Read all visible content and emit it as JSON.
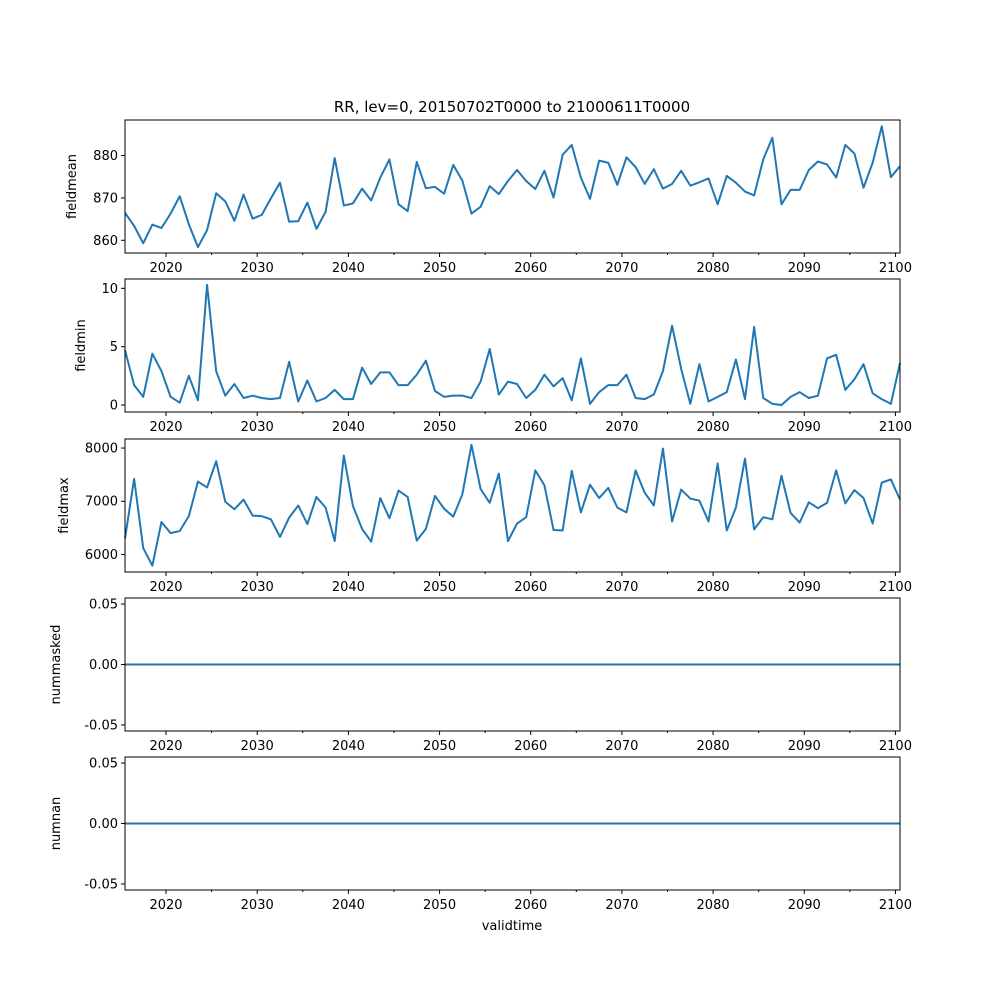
{
  "figure": {
    "title": "RR, lev=0, 20150702T0000 to 21000611T0000",
    "xlabel": "validtime"
  },
  "colors": {
    "line": "#1f77b4",
    "axes": "#000000",
    "background": "#ffffff"
  },
  "chart_data": [
    {
      "type": "line",
      "ylabel": "fieldmean",
      "x": [
        2015.5,
        2016.5,
        2017.5,
        2018.5,
        2019.5,
        2020.5,
        2021.5,
        2022.5,
        2023.5,
        2024.5,
        2025.5,
        2026.5,
        2027.5,
        2028.5,
        2029.5,
        2030.5,
        2031.5,
        2032.5,
        2033.5,
        2034.5,
        2035.5,
        2036.5,
        2037.5,
        2038.5,
        2039.5,
        2040.5,
        2041.5,
        2042.5,
        2043.5,
        2044.5,
        2045.5,
        2046.5,
        2047.5,
        2048.5,
        2049.5,
        2050.5,
        2051.5,
        2052.5,
        2053.5,
        2054.5,
        2055.5,
        2056.5,
        2057.5,
        2058.5,
        2059.5,
        2060.5,
        2061.5,
        2062.5,
        2063.5,
        2064.5,
        2065.5,
        2066.5,
        2067.5,
        2068.5,
        2069.5,
        2070.5,
        2071.5,
        2072.5,
        2073.5,
        2074.5,
        2075.5,
        2076.5,
        2077.5,
        2078.5,
        2079.5,
        2080.5,
        2081.5,
        2082.5,
        2083.5,
        2084.5,
        2085.5,
        2086.5,
        2087.5,
        2088.5,
        2089.5,
        2090.5,
        2091.5,
        2092.5,
        2093.5,
        2094.5,
        2095.5,
        2096.5,
        2097.5,
        2098.5,
        2099.5,
        2100.5
      ],
      "y": [
        866.5,
        863.4,
        859.3,
        863.7,
        862.9,
        866.3,
        870.4,
        863.8,
        858.4,
        862.4,
        871.1,
        869.2,
        864.6,
        870.8,
        865.1,
        866.0,
        869.9,
        873.6,
        864.4,
        864.5,
        868.9,
        862.7,
        866.7,
        879.4,
        868.2,
        868.7,
        872.2,
        869.4,
        874.8,
        879.1,
        868.5,
        866.9,
        878.5,
        872.3,
        872.6,
        871.0,
        877.8,
        874.1,
        866.3,
        867.9,
        872.8,
        870.9,
        874.0,
        876.6,
        874.0,
        872.1,
        876.4,
        870.1,
        880.2,
        882.5,
        874.8,
        869.8,
        878.8,
        878.3,
        873.1,
        879.6,
        877.3,
        873.3,
        876.8,
        872.2,
        873.3,
        876.4,
        872.9,
        873.7,
        874.6,
        868.5,
        875.2,
        873.6,
        871.5,
        870.6,
        879.1,
        884.2,
        868.5,
        871.9,
        871.9,
        876.6,
        878.6,
        877.9,
        874.8,
        882.5,
        880.5,
        872.4,
        878.3,
        886.9,
        874.9,
        877.5
      ],
      "yticks": [
        860,
        870,
        880
      ],
      "ylim": [
        857.0,
        888.4
      ],
      "xlim": [
        2015.5,
        2100.5
      ],
      "xticks": [
        2020,
        2030,
        2040,
        2050,
        2060,
        2070,
        2080,
        2090,
        2100
      ],
      "tick_decimals": 0
    },
    {
      "type": "line",
      "ylabel": "fieldmin",
      "x": [
        2015.5,
        2016.5,
        2017.5,
        2018.5,
        2019.5,
        2020.5,
        2021.5,
        2022.5,
        2023.5,
        2024.5,
        2025.5,
        2026.5,
        2027.5,
        2028.5,
        2029.5,
        2030.5,
        2031.5,
        2032.5,
        2033.5,
        2034.5,
        2035.5,
        2036.5,
        2037.5,
        2038.5,
        2039.5,
        2040.5,
        2041.5,
        2042.5,
        2043.5,
        2044.5,
        2045.5,
        2046.5,
        2047.5,
        2048.5,
        2049.5,
        2050.5,
        2051.5,
        2052.5,
        2053.5,
        2054.5,
        2055.5,
        2056.5,
        2057.5,
        2058.5,
        2059.5,
        2060.5,
        2061.5,
        2062.5,
        2063.5,
        2064.5,
        2065.5,
        2066.5,
        2067.5,
        2068.5,
        2069.5,
        2070.5,
        2071.5,
        2072.5,
        2073.5,
        2074.5,
        2075.5,
        2076.5,
        2077.5,
        2078.5,
        2079.5,
        2080.5,
        2081.5,
        2082.5,
        2083.5,
        2084.5,
        2085.5,
        2086.5,
        2087.5,
        2088.5,
        2089.5,
        2090.5,
        2091.5,
        2092.5,
        2093.5,
        2094.5,
        2095.5,
        2096.5,
        2097.5,
        2098.5,
        2099.5,
        2100.5
      ],
      "y": [
        4.7,
        1.7,
        0.7,
        4.4,
        2.9,
        0.7,
        0.2,
        2.5,
        0.4,
        10.3,
        2.9,
        0.8,
        1.8,
        0.6,
        0.8,
        0.6,
        0.5,
        0.6,
        3.7,
        0.3,
        2.1,
        0.3,
        0.6,
        1.3,
        0.5,
        0.5,
        3.2,
        1.8,
        2.8,
        2.8,
        1.7,
        1.7,
        2.6,
        3.8,
        1.2,
        0.7,
        0.8,
        0.8,
        0.6,
        2.0,
        4.8,
        0.9,
        2.0,
        1.8,
        0.6,
        1.3,
        2.6,
        1.6,
        2.3,
        0.4,
        4.0,
        0.1,
        1.1,
        1.7,
        1.7,
        2.6,
        0.6,
        0.5,
        0.9,
        2.9,
        6.8,
        3.1,
        0.1,
        3.5,
        0.3,
        0.7,
        1.1,
        3.9,
        0.5,
        6.7,
        0.6,
        0.1,
        0.0,
        0.7,
        1.1,
        0.6,
        0.8,
        4.0,
        4.3,
        1.3,
        2.2,
        3.5,
        1.0,
        0.5,
        0.1,
        3.6
      ],
      "yticks": [
        0,
        5,
        10
      ],
      "ylim": [
        -0.6,
        10.8
      ],
      "xlim": [
        2015.5,
        2100.5
      ],
      "xticks": [
        2020,
        2030,
        2040,
        2050,
        2060,
        2070,
        2080,
        2090,
        2100
      ],
      "tick_decimals": 0
    },
    {
      "type": "line",
      "ylabel": "fieldmax",
      "x": [
        2015.5,
        2016.5,
        2017.5,
        2018.5,
        2019.5,
        2020.5,
        2021.5,
        2022.5,
        2023.5,
        2024.5,
        2025.5,
        2026.5,
        2027.5,
        2028.5,
        2029.5,
        2030.5,
        2031.5,
        2032.5,
        2033.5,
        2034.5,
        2035.5,
        2036.5,
        2037.5,
        2038.5,
        2039.5,
        2040.5,
        2041.5,
        2042.5,
        2043.5,
        2044.5,
        2045.5,
        2046.5,
        2047.5,
        2048.5,
        2049.5,
        2050.5,
        2051.5,
        2052.5,
        2053.5,
        2054.5,
        2055.5,
        2056.5,
        2057.5,
        2058.5,
        2059.5,
        2060.5,
        2061.5,
        2062.5,
        2063.5,
        2064.5,
        2065.5,
        2066.5,
        2067.5,
        2068.5,
        2069.5,
        2070.5,
        2071.5,
        2072.5,
        2073.5,
        2074.5,
        2075.5,
        2076.5,
        2077.5,
        2078.5,
        2079.5,
        2080.5,
        2081.5,
        2082.5,
        2083.5,
        2084.5,
        2085.5,
        2086.5,
        2087.5,
        2088.5,
        2089.5,
        2090.5,
        2091.5,
        2092.5,
        2093.5,
        2094.5,
        2095.5,
        2096.5,
        2097.5,
        2098.5,
        2099.5,
        2100.5
      ],
      "y": [
        6300,
        7420,
        6120,
        5790,
        6610,
        6400,
        6440,
        6720,
        7370,
        7260,
        7750,
        6990,
        6850,
        7030,
        6730,
        6720,
        6660,
        6330,
        6690,
        6920,
        6570,
        7080,
        6880,
        6250,
        7860,
        6910,
        6480,
        6240,
        7060,
        6680,
        7200,
        7080,
        6260,
        6480,
        7100,
        6860,
        6710,
        7130,
        8060,
        7230,
        6970,
        7520,
        6250,
        6580,
        6700,
        7580,
        7300,
        6460,
        6450,
        7570,
        6790,
        7310,
        7060,
        7250,
        6880,
        6790,
        7580,
        7160,
        6920,
        7990,
        6620,
        7220,
        7050,
        7010,
        6620,
        7710,
        6450,
        6880,
        7800,
        6470,
        6700,
        6660,
        7480,
        6780,
        6600,
        6980,
        6870,
        6970,
        7580,
        6960,
        7210,
        7060,
        6580,
        7350,
        7410,
        7030
      ],
      "yticks": [
        6000,
        7000,
        8000
      ],
      "ylim": [
        5670,
        8170
      ],
      "xlim": [
        2015.5,
        2100.5
      ],
      "xticks": [
        2020,
        2030,
        2040,
        2050,
        2060,
        2070,
        2080,
        2090,
        2100
      ],
      "tick_decimals": 0
    },
    {
      "type": "line",
      "ylabel": "nummasked",
      "x": [
        2015.5,
        2100.5
      ],
      "y": [
        0,
        0
      ],
      "yticks": [
        -0.05,
        0.0,
        0.05
      ],
      "ylim": [
        -0.055,
        0.055
      ],
      "xlim": [
        2015.5,
        2100.5
      ],
      "xticks": [
        2020,
        2030,
        2040,
        2050,
        2060,
        2070,
        2080,
        2090,
        2100
      ],
      "tick_decimals": 2
    },
    {
      "type": "line",
      "ylabel": "numnan",
      "x": [
        2015.5,
        2100.5
      ],
      "y": [
        0,
        0
      ],
      "yticks": [
        -0.05,
        0.0,
        0.05
      ],
      "ylim": [
        -0.055,
        0.055
      ],
      "xlim": [
        2015.5,
        2100.5
      ],
      "xticks": [
        2020,
        2030,
        2040,
        2050,
        2060,
        2070,
        2080,
        2090,
        2100
      ],
      "tick_decimals": 2
    }
  ]
}
